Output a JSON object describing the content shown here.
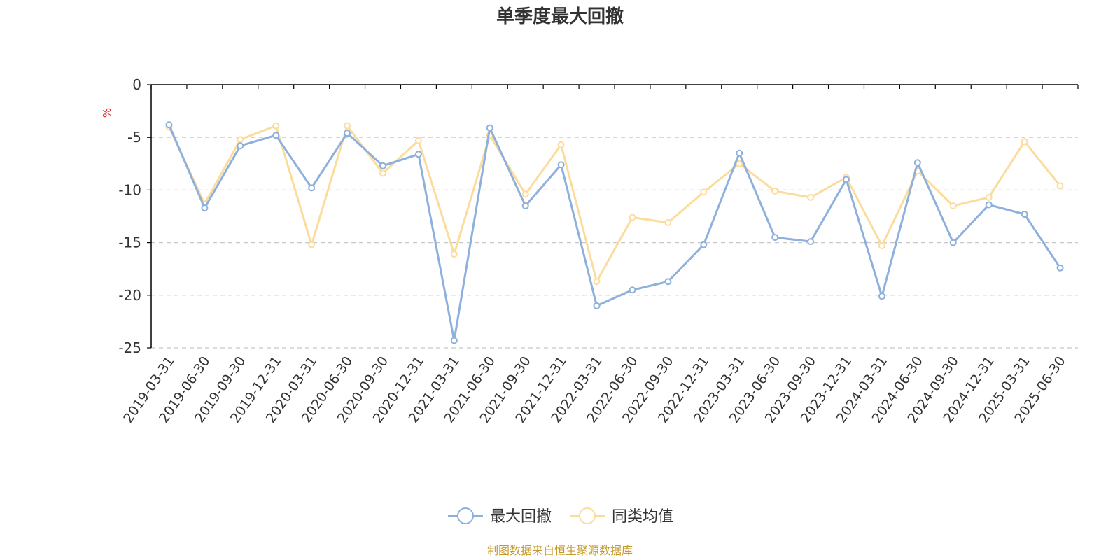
{
  "colors": {
    "series_max_drawdown": "#8eb0dc",
    "series_peer_avg": "#fbdc9c",
    "axis": "#000000",
    "grid": "#c8c8c8",
    "unit": "#e02020",
    "source": "#c79a2c"
  },
  "chart_data": {
    "type": "line",
    "title": "单季度最大回撤",
    "ylabel": "%",
    "ylim": [
      -25,
      0
    ],
    "yticks": [
      "0",
      "-5",
      "-10",
      "-15",
      "-20",
      "-25"
    ],
    "grid": "horizontal-dashed",
    "legend_position": "bottom-center",
    "source": "制图数据来自恒生聚源数据库",
    "categories": [
      "2019-03-31",
      "2019-06-30",
      "2019-09-30",
      "2019-12-31",
      "2020-03-31",
      "2020-06-30",
      "2020-09-30",
      "2020-12-31",
      "2021-03-31",
      "2021-06-30",
      "2021-09-30",
      "2021-12-31",
      "2022-03-31",
      "2022-06-30",
      "2022-09-30",
      "2022-12-31",
      "2023-03-31",
      "2023-06-30",
      "2023-09-30",
      "2023-12-31",
      "2024-03-31",
      "2024-06-30",
      "2024-09-30",
      "2024-12-31",
      "2025-03-31",
      "2025-06-30"
    ],
    "series": [
      {
        "name": "最大回撤",
        "values": [
          -3.8,
          -11.7,
          -5.8,
          -4.8,
          -9.8,
          -4.6,
          -7.7,
          -6.6,
          -24.3,
          -4.1,
          -11.5,
          -7.6,
          -21.0,
          -19.5,
          -18.7,
          -15.2,
          -6.5,
          -14.5,
          -14.9,
          -9.0,
          -20.1,
          -7.4,
          -15.0,
          -11.4,
          -12.3,
          -17.4
        ]
      },
      {
        "name": "同类均值",
        "values": [
          -4.0,
          -11.3,
          -5.2,
          -3.9,
          -15.2,
          -3.9,
          -8.4,
          -5.3,
          -16.1,
          -4.8,
          -10.4,
          -5.7,
          -18.7,
          -12.6,
          -13.1,
          -10.2,
          -7.5,
          -10.1,
          -10.7,
          -8.8,
          -15.3,
          -8.2,
          -11.5,
          -10.7,
          -5.4,
          -9.6
        ]
      }
    ]
  }
}
